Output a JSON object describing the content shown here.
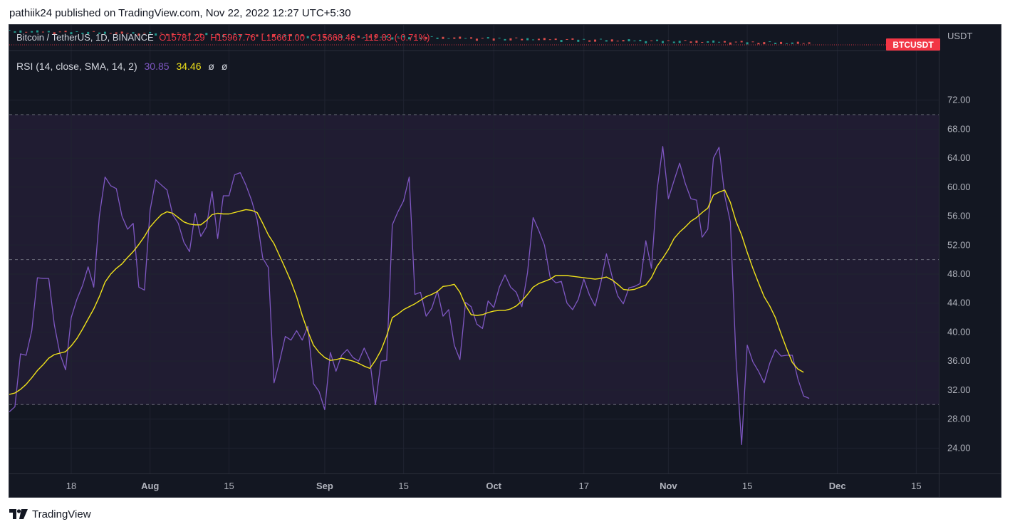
{
  "header": {
    "published_text": "pathiik24 published on TradingView.com, Nov 22, 2022 12:27 UTC+5:30"
  },
  "legend": {
    "symbol": "Bitcoin / TetherUS, 1D, BINANCE",
    "open": "O15781.29",
    "high": "H15967.76",
    "low": "L15661.00",
    "close": "C15668.46",
    "change": "-112.83 (-0.71%)"
  },
  "price_axis": {
    "currency_label": "USDT",
    "ticker_badge": "BTCUSDT"
  },
  "rsi_legend": {
    "name": "RSI (14, close, SMA, 14, 2)",
    "rsi_value": "30.85",
    "sma_value": "34.46",
    "na1": "ø",
    "na2": "ø"
  },
  "footer": {
    "brand": "TradingView"
  },
  "colors": {
    "background": "#131722",
    "band_fill": "#201c32",
    "rsi_line": "#7e57c2",
    "sma_line": "#f0e21a",
    "grid": "#1f2330",
    "dashed_levels": "#787b86",
    "badge": "#f23645",
    "axis_text": "#b2b5be"
  },
  "chart_data": {
    "type": "line",
    "title": "RSI (14, close, SMA, 14, 2)",
    "xlabel": "",
    "ylabel": "",
    "ylim": [
      20.5,
      75.5
    ],
    "y_ticks": [
      "72.00",
      "68.00",
      "64.00",
      "60.00",
      "56.00",
      "52.00",
      "48.00",
      "44.00",
      "40.00",
      "36.00",
      "32.00",
      "28.00",
      "24.00"
    ],
    "x_range": [
      "2022-07-07",
      "2022-12-19"
    ],
    "x_ticks": [
      {
        "date": "2022-07-18",
        "label": "18"
      },
      {
        "date": "2022-08-01",
        "label": "Aug"
      },
      {
        "date": "2022-08-15",
        "label": "15"
      },
      {
        "date": "2022-09-01",
        "label": "Sep"
      },
      {
        "date": "2022-09-15",
        "label": "15"
      },
      {
        "date": "2022-10-01",
        "label": "Oct"
      },
      {
        "date": "2022-10-17",
        "label": "17"
      },
      {
        "date": "2022-11-01",
        "label": "Nov"
      },
      {
        "date": "2022-11-15",
        "label": "15"
      },
      {
        "date": "2022-12-01",
        "label": "Dec"
      },
      {
        "date": "2022-12-15",
        "label": "15"
      }
    ],
    "levels": {
      "upper": 70,
      "middle": 50,
      "lower": 30
    },
    "grid": true,
    "series": [
      {
        "name": "RSI",
        "start_date": "2022-07-07",
        "values": [
          29.0,
          29.7,
          37.0,
          36.8,
          40.2,
          47.5,
          47.4,
          47.4,
          41.0,
          37.0,
          34.8,
          42.0,
          44.5,
          46.4,
          49.0,
          46.2,
          56.0,
          61.4,
          60.2,
          59.8,
          56.0,
          54.2,
          55.0,
          46.2,
          45.8,
          56.8,
          61.0,
          60.3,
          59.6,
          56.2,
          55.0,
          52.4,
          51.1,
          56.4,
          53.2,
          54.5,
          59.4,
          52.9,
          58.8,
          58.8,
          61.7,
          62.0,
          60.3,
          58.2,
          55.5,
          50.2,
          48.9,
          33.0,
          36.0,
          39.4,
          38.9,
          40.2,
          38.9,
          40.8,
          32.9,
          31.8,
          29.3,
          37.2,
          34.6,
          36.8,
          37.6,
          36.5,
          36.0,
          37.8,
          36.1,
          30.0,
          36.0,
          36.1,
          54.8,
          56.6,
          58.1,
          61.4,
          45.2,
          45.5,
          42.2,
          43.3,
          45.7,
          42.2,
          43.1,
          38.2,
          36.2,
          44.1,
          43.5,
          41.1,
          40.5,
          44.3,
          43.4,
          46.2,
          47.9,
          46.2,
          45.5,
          43.5,
          48.2,
          55.8,
          54.0,
          52.0,
          47.6,
          46.8,
          47.0,
          44.0,
          43.1,
          44.5,
          47.3,
          45.1,
          43.6,
          46.8,
          50.8,
          47.7,
          45.0,
          43.9,
          46.1,
          46.3,
          46.7,
          52.6,
          48.8,
          59.6,
          65.6,
          58.4,
          60.9,
          63.3,
          60.5,
          58.4,
          58.2,
          53.1,
          54.2,
          64.0,
          65.5,
          58.8,
          55.2,
          36.4,
          24.5,
          38.2,
          35.9,
          34.6,
          33.0,
          35.7,
          37.6,
          36.7,
          36.8,
          36.8,
          33.5,
          31.2,
          30.85
        ]
      },
      {
        "name": "RSI-based MA",
        "start_date": "2022-07-07",
        "values": [
          31.4,
          31.6,
          32.1,
          32.8,
          33.7,
          34.7,
          35.5,
          36.4,
          36.9,
          37.1,
          37.3,
          38.1,
          39.1,
          40.4,
          41.8,
          43.2,
          44.9,
          46.9,
          48.0,
          48.8,
          49.4,
          50.3,
          51.1,
          52.1,
          53.2,
          54.5,
          55.4,
          56.2,
          56.6,
          56.4,
          55.8,
          55.2,
          54.9,
          54.8,
          54.8,
          55.4,
          56.2,
          56.4,
          56.3,
          56.3,
          56.5,
          56.7,
          56.9,
          56.8,
          56.5,
          55.0,
          53.4,
          52.2,
          50.5,
          48.8,
          47.0,
          44.9,
          42.3,
          40.1,
          38.2,
          37.2,
          36.5,
          36.1,
          36.2,
          36.4,
          36.2,
          36.0,
          35.7,
          35.3,
          35.0,
          36.1,
          37.5,
          39.5,
          42.0,
          42.5,
          43.1,
          43.5,
          43.9,
          44.4,
          44.9,
          45.2,
          45.6,
          46.3,
          46.4,
          46.6,
          45.5,
          43.7,
          42.4,
          42.3,
          42.4,
          42.7,
          42.9,
          43.0,
          43.0,
          43.2,
          43.6,
          44.3,
          45.2,
          46.2,
          46.7,
          47.0,
          47.3,
          47.8,
          47.8,
          47.8,
          47.7,
          47.6,
          47.5,
          47.4,
          47.3,
          47.4,
          47.6,
          47.2,
          46.6,
          45.9,
          45.8,
          45.9,
          46.2,
          46.5,
          47.5,
          49.1,
          50.2,
          51.4,
          52.9,
          53.8,
          54.5,
          55.3,
          55.8,
          56.5,
          57.1,
          58.9,
          59.3,
          59.6,
          57.9,
          55.3,
          53.4,
          51.0,
          48.8,
          46.8,
          44.9,
          43.6,
          42.0,
          39.8,
          37.7,
          35.8,
          34.9,
          34.46
        ]
      }
    ]
  }
}
